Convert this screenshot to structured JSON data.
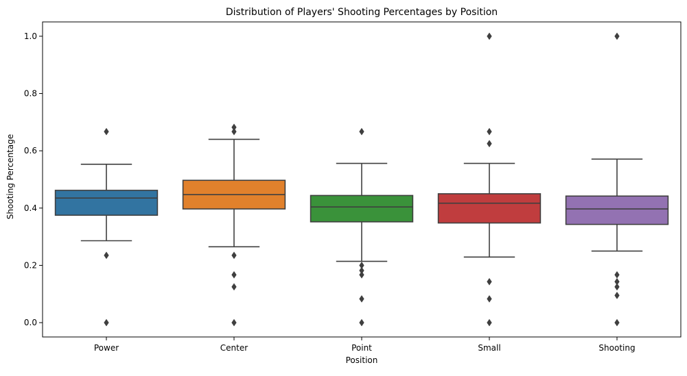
{
  "chart_data": {
    "type": "box",
    "title": "Distribution of Players' Shooting Percentages by Position",
    "xlabel": "Position",
    "ylabel": "Shooting Percentage",
    "categories": [
      "Power",
      "Center",
      "Point",
      "Small",
      "Shooting"
    ],
    "ylim": [
      -0.05,
      1.05
    ],
    "yticks": [
      0.0,
      0.2,
      0.4,
      0.6,
      0.8,
      1.0
    ],
    "ytick_labels": [
      "0.0",
      "0.2",
      "0.4",
      "0.6",
      "0.8",
      "1.0"
    ],
    "grid": false,
    "legend": "none",
    "colors": [
      "#3274a1",
      "#e1812c",
      "#3a923a",
      "#c03d3e",
      "#9372b2"
    ],
    "boxes": [
      {
        "category": "Power",
        "whisker_low": 0.286,
        "q1": 0.375,
        "median": 0.435,
        "q3": 0.462,
        "whisker_high": 0.553,
        "outliers": [
          0.667,
          0.235,
          0.0
        ]
      },
      {
        "category": "Center",
        "whisker_low": 0.265,
        "q1": 0.397,
        "median": 0.447,
        "q3": 0.497,
        "whisker_high": 0.64,
        "outliers": [
          0.682,
          0.667,
          0.235,
          0.167,
          0.125,
          0.0
        ]
      },
      {
        "category": "Point",
        "whisker_low": 0.214,
        "q1": 0.352,
        "median": 0.404,
        "q3": 0.444,
        "whisker_high": 0.556,
        "outliers": [
          0.667,
          0.2,
          0.182,
          0.167,
          0.083,
          0.0
        ]
      },
      {
        "category": "Small",
        "whisker_low": 0.229,
        "q1": 0.348,
        "median": 0.417,
        "q3": 0.45,
        "whisker_high": 0.556,
        "outliers": [
          1.0,
          0.667,
          0.625,
          0.143,
          0.083,
          0.0
        ]
      },
      {
        "category": "Shooting",
        "whisker_low": 0.25,
        "q1": 0.343,
        "median": 0.397,
        "q3": 0.442,
        "whisker_high": 0.571,
        "outliers": [
          1.0,
          0.167,
          0.143,
          0.125,
          0.095,
          0.0
        ]
      }
    ]
  }
}
